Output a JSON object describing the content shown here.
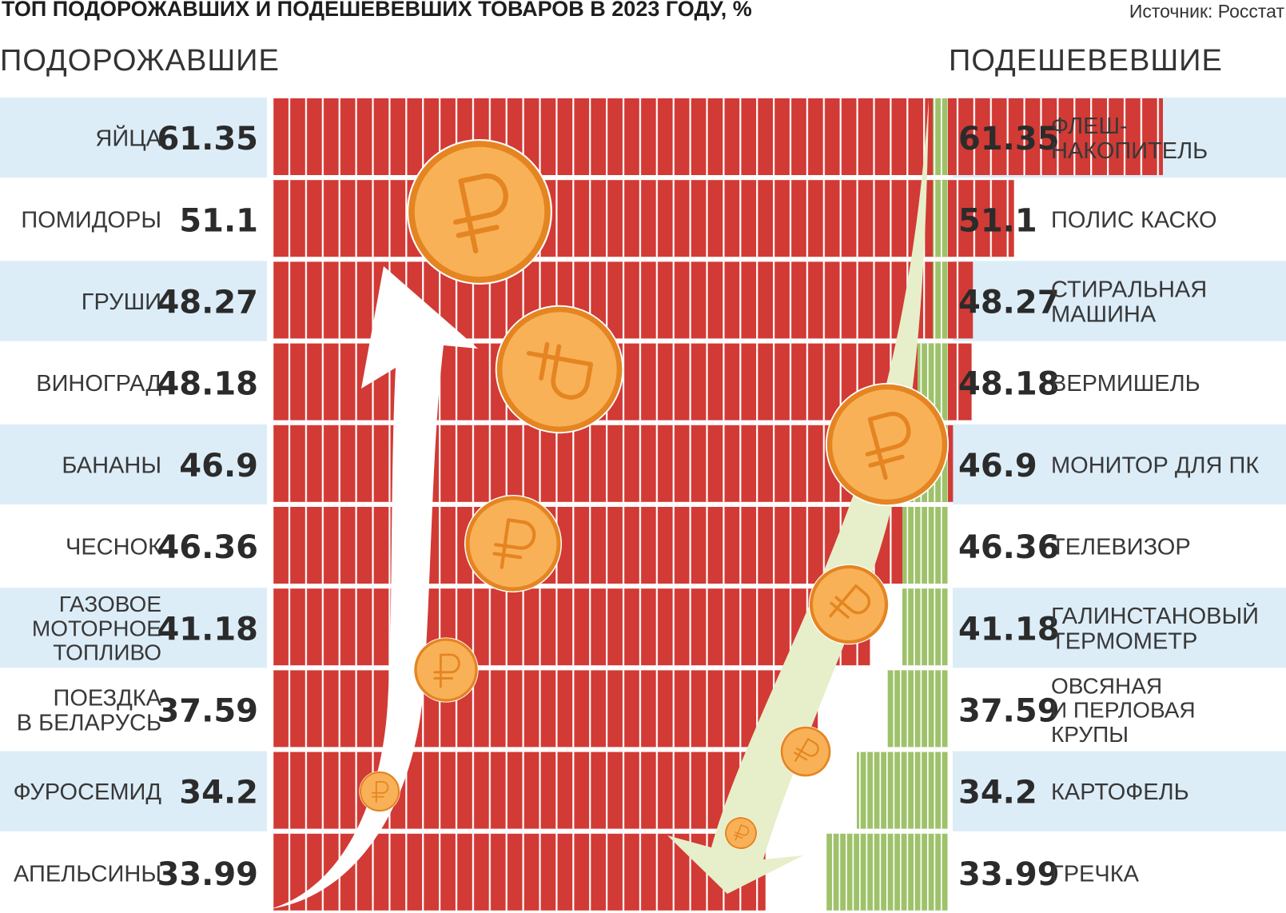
{
  "header": {
    "title": "ТОП ПОДОРОЖАВШИХ И ПОДЕШЕВЕВШИХ ТОВАРОВ В 2023 ГОДУ, %",
    "source": "Источник: Росстат",
    "section_left": "ПОДОРОЖАВШИЕ",
    "section_right": "ПОДЕШЕВЕВШИЕ"
  },
  "colors": {
    "increase_bar": "#d23a35",
    "decrease_bar": "#9ec26a",
    "row_band": "#dcedf8",
    "coin_fill": "#f9b157",
    "coin_edge": "#e48522",
    "arrow_down": "#e6efc9"
  },
  "icons": {
    "coin": "ruble-coin-icon",
    "arrow_up": "up-arrow-icon",
    "arrow_down": "down-arrow-icon"
  },
  "chart_data": [
    {
      "type": "bar",
      "orientation": "horizontal",
      "title": "ПОДОРОЖАВШИЕ",
      "categories": [
        "ЯЙЦА",
        "ПОМИДОРЫ",
        "ГРУШИ",
        "ВИНОГРАД",
        "БАНАНЫ",
        "ЧЕСНОК",
        "ГАЗОВОЕ МОТОРНОЕ ТОПЛИВО",
        "ПОЕЗДКА В БЕЛАРУСЬ",
        "ФУРОСЕМИД",
        "АПЕЛЬСИНЫ"
      ],
      "label_lines": [
        [
          "ЯЙЦА"
        ],
        [
          "ПОМИДОРЫ"
        ],
        [
          "ГРУШИ"
        ],
        [
          "ВИНОГРАД"
        ],
        [
          "БАНАНЫ"
        ],
        [
          "ЧЕСНОК"
        ],
        [
          "ГАЗОВОЕ",
          "МОТОРНОЕ",
          "ТОПЛИВО"
        ],
        [
          "ПОЕЗДКА",
          "В БЕЛАРУСЬ"
        ],
        [
          "ФУРОСЕМИД"
        ],
        [
          "АПЕЛЬСИНЫ"
        ]
      ],
      "value_labels": [
        "61.35",
        "51.1",
        "48.27",
        "48.18",
        "46.9",
        "46.36",
        "41.18",
        "37.59",
        "34.2",
        "33.99"
      ],
      "values": [
        61.35,
        51.1,
        48.27,
        48.18,
        46.9,
        46.36,
        41.18,
        37.59,
        34.2,
        33.99
      ]
    },
    {
      "type": "bar",
      "orientation": "horizontal",
      "title": "ПОДЕШЕВЕВШИЕ",
      "categories": [
        "ФЛЕШ-НАКОПИТЕЛЬ",
        "ПОЛИС КАСКО",
        "СТИРАЛЬНАЯ МАШИНА",
        "ВЕРМИШЕЛЬ",
        "МОНИТОР ДЛЯ ПК",
        "ТЕЛЕВИЗОР",
        "ГАЛИНСТАНОВЫЙ ТЕРМОМЕТР",
        "ОВСЯНАЯ И ПЕРЛОВАЯ КРУПЫ",
        "КАРТОФЕЛЬ",
        "ГРЕЧКА"
      ],
      "label_lines": [
        [
          "ФЛЕШ-",
          "НАКОПИТЕЛЬ"
        ],
        [
          "ПОЛИС КАСКО"
        ],
        [
          "СТИРАЛЬНАЯ",
          "МАШИНА"
        ],
        [
          "ВЕРМИШЕЛЬ"
        ],
        [
          "МОНИТОР ДЛЯ ПК"
        ],
        [
          "ТЕЛЕВИЗОР"
        ],
        [
          "ГАЛИНСТАНОВЫЙ",
          "ТЕРМОМЕТР"
        ],
        [
          "ОВСЯНАЯ",
          "И ПЕРЛОВАЯ",
          "КРУПЫ"
        ],
        [
          "КАРТОФЕЛЬ"
        ],
        [
          "ГРЕЧКА"
        ]
      ],
      "value_labels": [
        "61.35",
        "51.1",
        "48.27",
        "48.18",
        "46.9",
        "46.36",
        "41.18",
        "37.59",
        "34.2",
        "33.99"
      ],
      "values": [
        61.35,
        51.1,
        48.27,
        48.18,
        46.9,
        46.36,
        41.18,
        37.59,
        34.2,
        33.99
      ],
      "bar_length_values": [
        1,
        1,
        1,
        2,
        3,
        3,
        3,
        4,
        6,
        8
      ]
    }
  ]
}
